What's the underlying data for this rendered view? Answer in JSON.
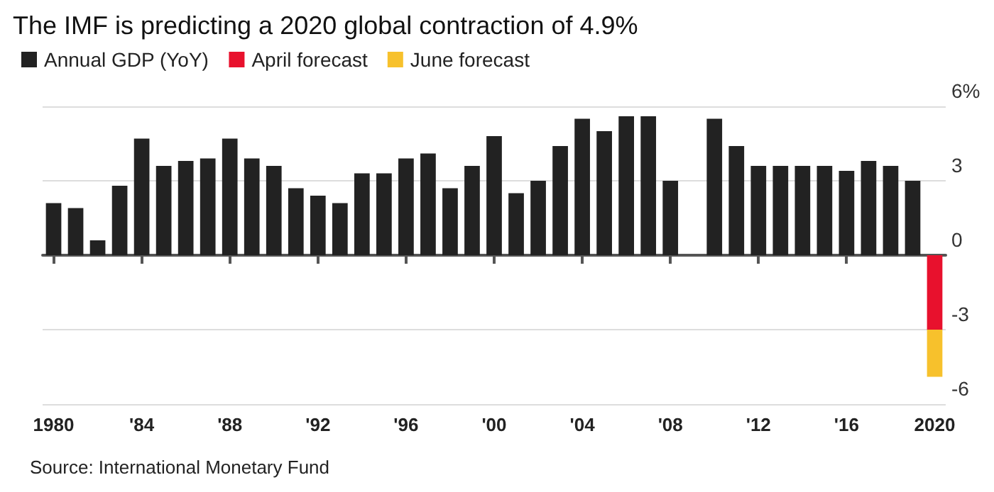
{
  "chart_data": {
    "type": "bar",
    "title": "The IMF is predicting a 2020 global contraction of 4.9%",
    "categories": [
      "1980",
      null,
      null,
      null,
      "'84",
      null,
      null,
      null,
      "'88",
      null,
      null,
      null,
      "'92",
      null,
      null,
      null,
      "'96",
      null,
      null,
      null,
      "'00",
      null,
      null,
      null,
      "'04",
      null,
      null,
      null,
      "'08",
      null,
      null,
      null,
      "'12",
      null,
      null,
      null,
      "'16",
      null,
      null,
      null,
      "2020"
    ],
    "series": [
      {
        "name": "Annual GDP (YoY)",
        "color": "#222222",
        "values": [
          2.1,
          1.9,
          0.6,
          2.8,
          4.7,
          3.6,
          3.8,
          3.9,
          4.7,
          3.9,
          3.6,
          2.7,
          2.4,
          2.1,
          3.3,
          3.3,
          3.9,
          4.1,
          2.7,
          3.6,
          4.8,
          2.5,
          3.0,
          4.4,
          5.5,
          5.0,
          5.6,
          5.6,
          3.0,
          null,
          5.5,
          4.4,
          3.6,
          3.6,
          3.6,
          3.6,
          3.4,
          3.8,
          3.6,
          3.0,
          null
        ]
      },
      {
        "name": "April forecast",
        "color": "#e8112d",
        "values": [
          null,
          null,
          null,
          null,
          null,
          null,
          null,
          null,
          null,
          null,
          null,
          null,
          null,
          null,
          null,
          null,
          null,
          null,
          null,
          null,
          null,
          null,
          null,
          null,
          null,
          null,
          null,
          null,
          null,
          null,
          null,
          null,
          null,
          null,
          null,
          null,
          null,
          null,
          null,
          null,
          -3.0
        ]
      },
      {
        "name": "June forecast",
        "color": "#f7c12c",
        "values": [
          null,
          null,
          null,
          null,
          null,
          null,
          null,
          null,
          null,
          null,
          null,
          null,
          null,
          null,
          null,
          null,
          null,
          null,
          null,
          null,
          null,
          null,
          null,
          null,
          null,
          null,
          null,
          null,
          null,
          null,
          null,
          null,
          null,
          null,
          null,
          null,
          null,
          null,
          null,
          null,
          -1.9
        ]
      }
    ],
    "stacked": true,
    "ylim": [
      -6,
      6
    ],
    "yticks": [
      -6,
      -3,
      0,
      3,
      {
        "value": 6,
        "label": "6%"
      }
    ],
    "grid": "y",
    "legend": "top left",
    "annotations": [
      "Source: International Monetary Fund"
    ]
  }
}
